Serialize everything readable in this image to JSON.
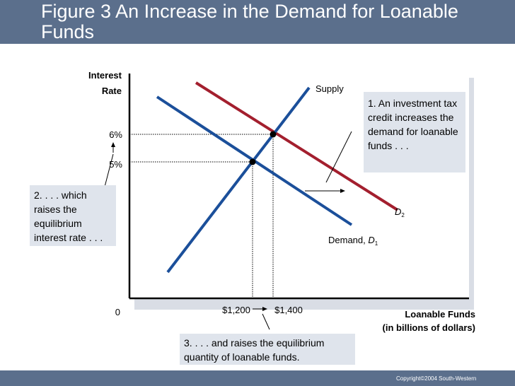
{
  "header": {
    "title": "Figure 3 An Increase in the Demand for Loanable Funds"
  },
  "chart_data": {
    "type": "line",
    "ylabel_line1": "Interest",
    "ylabel_line2": "Rate",
    "xlabel_line1": "Loanable Funds",
    "xlabel_line2": "(in billions of dollars)",
    "origin_label": "0",
    "y_ticks": [
      "6%",
      "5%"
    ],
    "x_ticks": [
      "$1,200",
      "$1,400"
    ],
    "curves": {
      "supply": "Supply",
      "demand1_prefix": "Demand, ",
      "demand1_letter": "D",
      "demand1_sub": "1",
      "demand2_letter": "D",
      "demand2_sub": "2"
    }
  },
  "annotations": {
    "box1": "1. An investment tax credit increases the demand for loanable funds . . .",
    "box2": "2. . . . which raises the equilibrium interest rate . . .",
    "box3": "3. . . . and raises the equilibrium quantity of loanable funds."
  },
  "footer": {
    "copyright": "Copyright©2004  South-Western"
  },
  "colors": {
    "header": "#5b6f8c",
    "supply": "#1b4f9a",
    "demand1": "#1b4f9a",
    "demand2": "#a31f2e",
    "box": "#dfe4ec"
  }
}
